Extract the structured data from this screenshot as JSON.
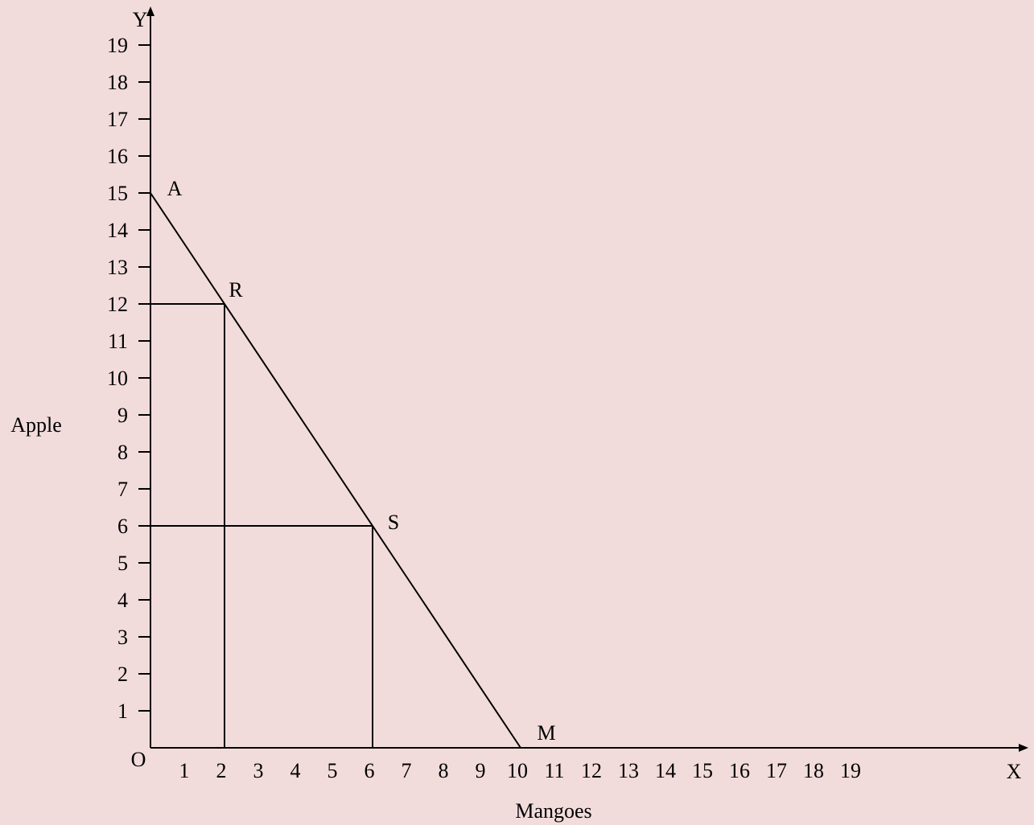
{
  "colors": {
    "background": "#f2dcdb",
    "ink": "#000000"
  },
  "chart_data": {
    "type": "line",
    "title": "",
    "xlabel": "Mangoes",
    "ylabel": "Apple",
    "x_axis_letter": "X",
    "y_axis_letter": "Y",
    "origin_label": "O",
    "xlim": [
      0,
      19
    ],
    "ylim": [
      0,
      19
    ],
    "x_ticks": [
      {
        "value": 1,
        "label": "1"
      },
      {
        "value": 2,
        "label": "2"
      },
      {
        "value": 3,
        "label": "3"
      },
      {
        "value": 4,
        "label": "4"
      },
      {
        "value": 5,
        "label": "5"
      },
      {
        "value": 6,
        "label": "6"
      },
      {
        "value": 7,
        "label": "7"
      },
      {
        "value": 8,
        "label": "8"
      },
      {
        "value": 9,
        "label": "9"
      },
      {
        "value": 10,
        "label": "10"
      },
      {
        "value": 11,
        "label": "11"
      },
      {
        "value": 12,
        "label": "12"
      },
      {
        "value": 13,
        "label": "13"
      },
      {
        "value": 14,
        "label": "14"
      },
      {
        "value": 15,
        "label": "15"
      },
      {
        "value": 16,
        "label": "16"
      },
      {
        "value": 17,
        "label": "17"
      },
      {
        "value": 18,
        "label": "18"
      },
      {
        "value": 19,
        "label": "19"
      }
    ],
    "y_ticks": [
      {
        "value": 1,
        "label": "1"
      },
      {
        "value": 2,
        "label": "2"
      },
      {
        "value": 3,
        "label": "3"
      },
      {
        "value": 4,
        "label": "4"
      },
      {
        "value": 5,
        "label": "5"
      },
      {
        "value": 6,
        "label": "6"
      },
      {
        "value": 7,
        "label": "7"
      },
      {
        "value": 8,
        "label": "8"
      },
      {
        "value": 9,
        "label": "9"
      },
      {
        "value": 10,
        "label": "10"
      },
      {
        "value": 11,
        "label": "11"
      },
      {
        "value": 12,
        "label": "12"
      },
      {
        "value": 13,
        "label": "13"
      },
      {
        "value": 14,
        "label": "14"
      },
      {
        "value": 15,
        "label": "15"
      },
      {
        "value": 16,
        "label": "16"
      },
      {
        "value": 17,
        "label": "17"
      },
      {
        "value": 18,
        "label": "18"
      },
      {
        "value": 19,
        "label": "19"
      }
    ],
    "series": [
      {
        "points": [
          {
            "x": 0,
            "y": 15
          },
          {
            "x": 10,
            "y": 0
          }
        ]
      }
    ],
    "points": [
      {
        "label": "A",
        "x": 0,
        "y": 15
      },
      {
        "label": "R",
        "x": 2,
        "y": 12
      },
      {
        "label": "S",
        "x": 6,
        "y": 6
      },
      {
        "label": "M",
        "x": 10,
        "y": 0
      }
    ],
    "guide_points": [
      {
        "x": 2,
        "y": 12
      },
      {
        "x": 6,
        "y": 6
      }
    ],
    "grid": false,
    "legend": "none"
  }
}
